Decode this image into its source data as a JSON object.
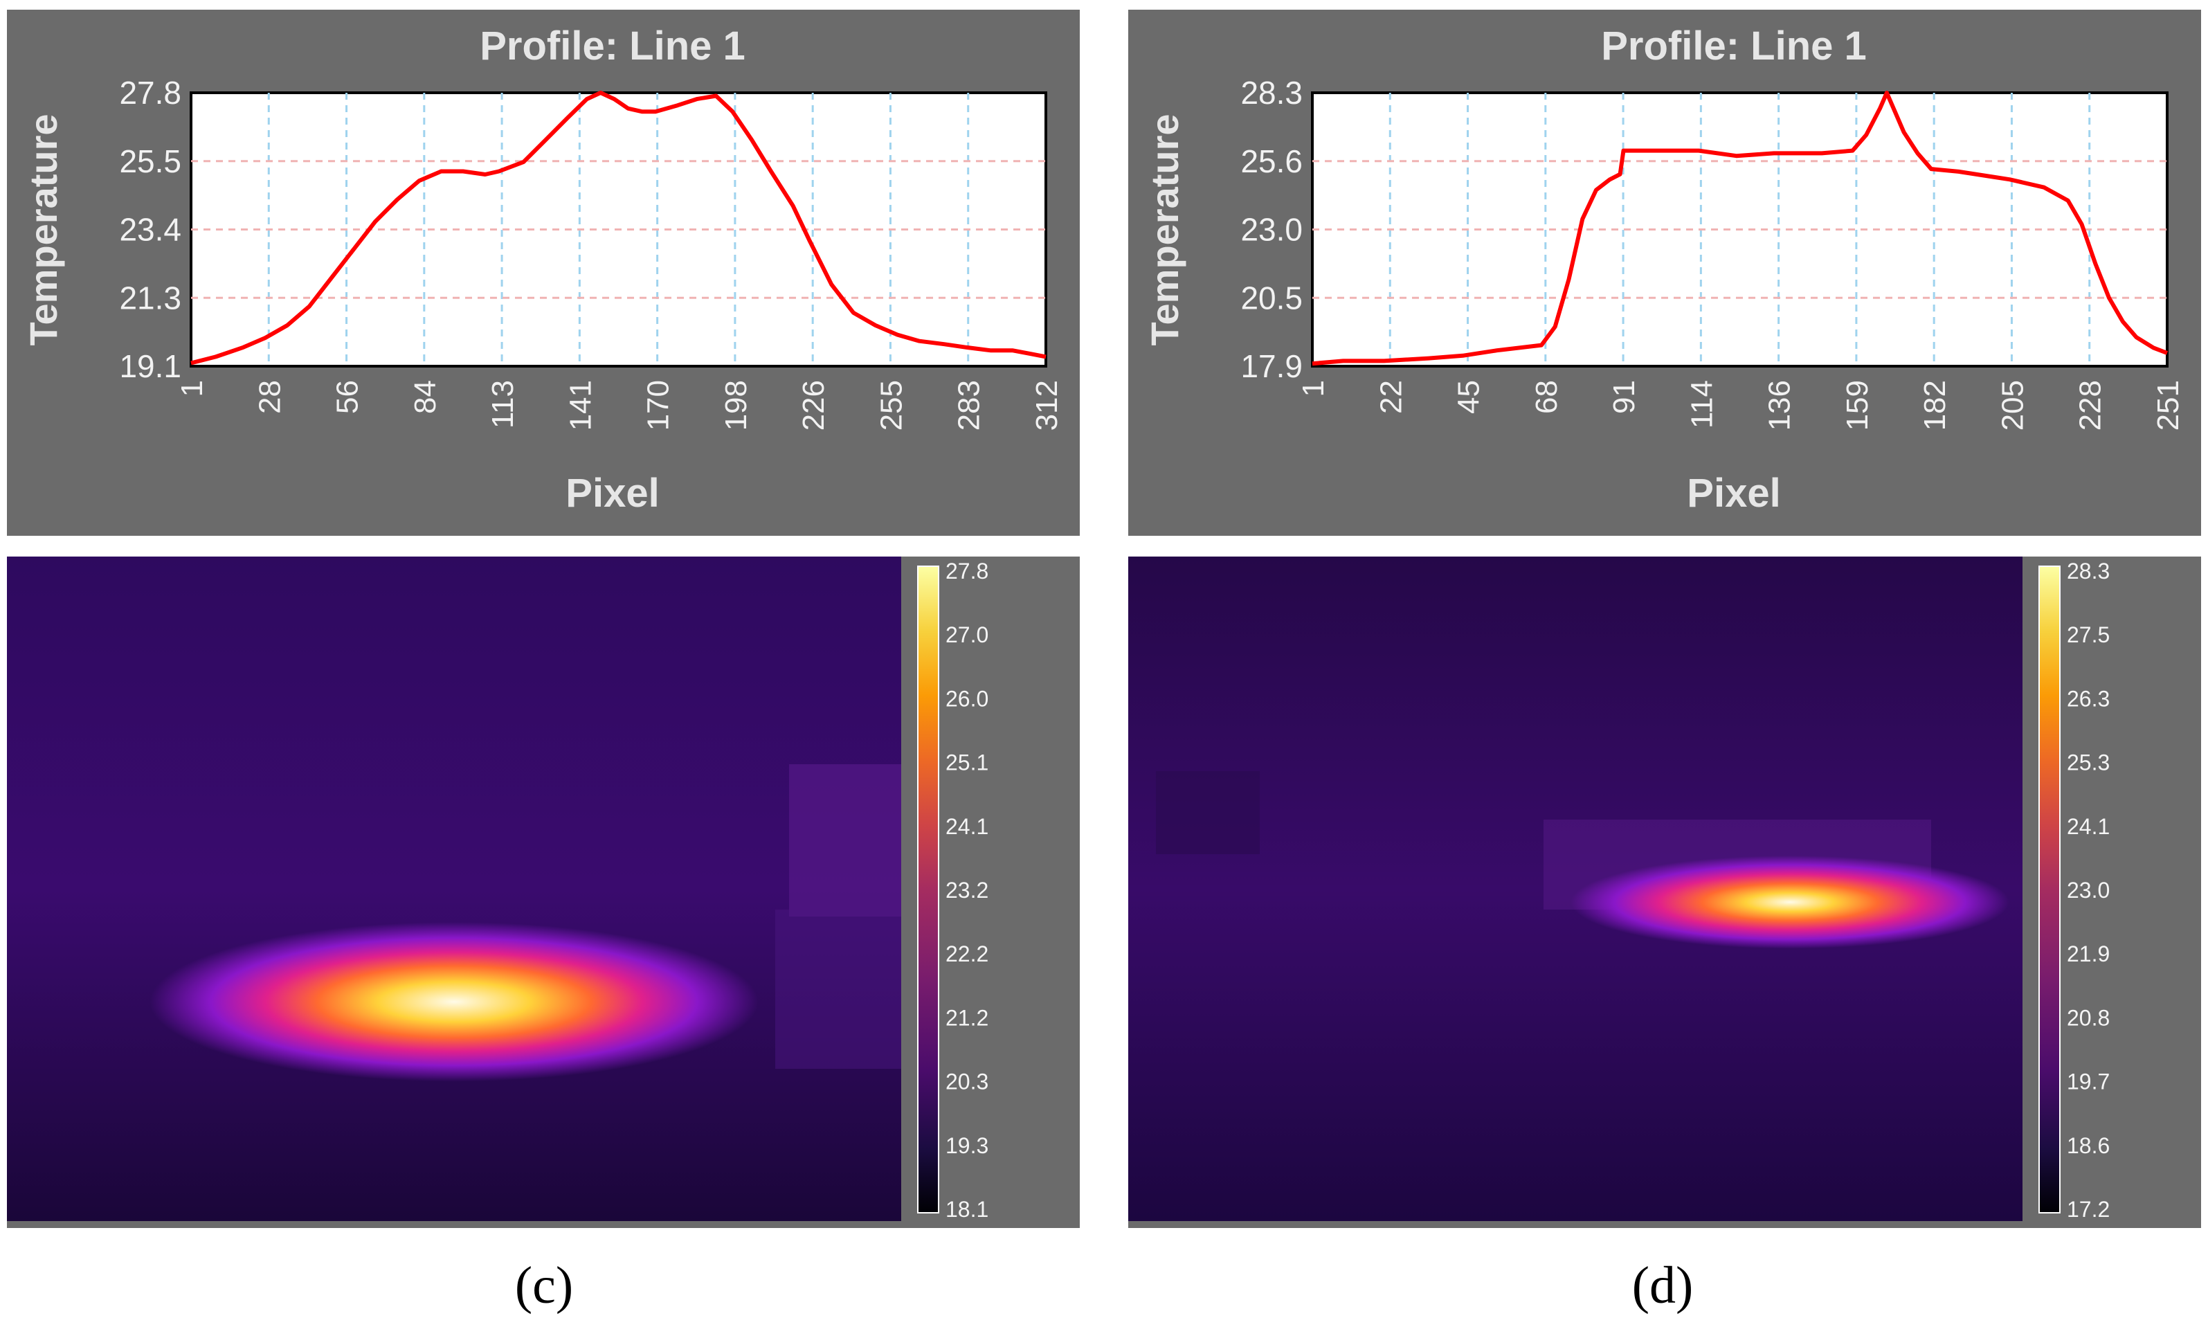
{
  "colors": {
    "panel_bg": "#6b6b6b",
    "plot_bg": "#ffffff",
    "line": "#ff0000",
    "grid_v": "#9fd3ee",
    "grid_h": "#f0b3b3",
    "label": "#e6e6e6",
    "tick": "#f2f2f2"
  },
  "panels": [
    {
      "caption": "(c)",
      "chart_data": {
        "type": "line",
        "title": "Profile: Line 1",
        "xlabel": "Pixel",
        "ylabel": "Temperature",
        "xlim": [
          1,
          312
        ],
        "ylim": [
          19.1,
          27.8
        ],
        "xticks": [
          "1",
          "28",
          "56",
          "84",
          "113",
          "141",
          "170",
          "198",
          "226",
          "255",
          "283",
          "312"
        ],
        "yticks": [
          "19.1",
          "21.3",
          "23.4",
          "25.5",
          "27.8"
        ],
        "series": [
          {
            "name": "Line 1",
            "x": [
              1,
              10,
              20,
              28,
              36,
              44,
              52,
              60,
              68,
              76,
              84,
              92,
              100,
              108,
              113,
              122,
              130,
              138,
              145,
              150,
              155,
              160,
              165,
              170,
              178,
              185,
              192,
              198,
              205,
              212,
              220,
              226,
              234,
              242,
              250,
              258,
              266,
              275,
              283,
              292,
              300,
              306,
              312
            ],
            "y": [
              19.2,
              19.4,
              19.7,
              20.0,
              20.4,
              21.0,
              21.9,
              22.8,
              23.7,
              24.4,
              25.0,
              25.3,
              25.3,
              25.2,
              25.3,
              25.6,
              26.3,
              27.0,
              27.6,
              27.8,
              27.6,
              27.3,
              27.2,
              27.2,
              27.4,
              27.6,
              27.7,
              27.2,
              26.3,
              25.3,
              24.2,
              23.1,
              21.7,
              20.8,
              20.4,
              20.1,
              19.9,
              19.8,
              19.7,
              19.6,
              19.6,
              19.5,
              19.4
            ]
          }
        ]
      },
      "colorbar": {
        "min": 18.1,
        "max": 27.8,
        "ticks": [
          "27.8",
          "27.0",
          "26.0",
          "25.1",
          "24.1",
          "23.2",
          "22.2",
          "21.2",
          "20.3",
          "19.3",
          "18.1"
        ]
      },
      "thermal_image": {
        "hotspot_length": 0.68,
        "hotspot_thickness": 0.06,
        "hotspot_center": 0.5,
        "hotspot_height": 0.67
      }
    },
    {
      "caption": "(d)",
      "chart_data": {
        "type": "line",
        "title": "Profile: Line 1",
        "xlabel": "Pixel",
        "ylabel": "Temperature",
        "xlim": [
          1,
          251
        ],
        "ylim": [
          17.9,
          28.3
        ],
        "xticks": [
          "1",
          "22",
          "45",
          "68",
          "91",
          "114",
          "136",
          "159",
          "182",
          "205",
          "228",
          "251"
        ],
        "yticks": [
          "17.9",
          "20.5",
          "23.0",
          "25.6",
          "28.3"
        ],
        "series": [
          {
            "name": "Line 1",
            "x": [
              1,
              10,
              22,
              35,
              45,
              55,
              68,
              72,
              76,
              80,
              84,
              88,
              91,
              92,
              100,
              114,
              125,
              136,
              150,
              159,
              163,
              167,
              169,
              171,
              174,
              178,
              182,
              190,
              200,
              205,
              215,
              222,
              226,
              230,
              234,
              238,
              242,
              247,
              251
            ],
            "y": [
              18.0,
              18.1,
              18.1,
              18.2,
              18.3,
              18.5,
              18.7,
              19.4,
              21.2,
              23.5,
              24.6,
              25.0,
              25.2,
              26.1,
              26.1,
              26.1,
              25.9,
              26.0,
              26.0,
              26.1,
              26.7,
              27.7,
              28.3,
              27.7,
              26.8,
              26.0,
              25.4,
              25.3,
              25.1,
              25.0,
              24.7,
              24.2,
              23.3,
              21.8,
              20.5,
              19.6,
              19.0,
              18.6,
              18.4
            ]
          }
        ]
      },
      "colorbar": {
        "min": 17.2,
        "max": 28.3,
        "ticks": [
          "28.3",
          "27.5",
          "26.3",
          "25.3",
          "24.1",
          "23.0",
          "21.9",
          "20.8",
          "19.7",
          "18.6",
          "17.2"
        ]
      },
      "thermal_image": {
        "hotspot_length": 0.49,
        "hotspot_thickness": 0.035,
        "hotspot_center": 0.74,
        "hotspot_height": 0.52
      }
    }
  ]
}
